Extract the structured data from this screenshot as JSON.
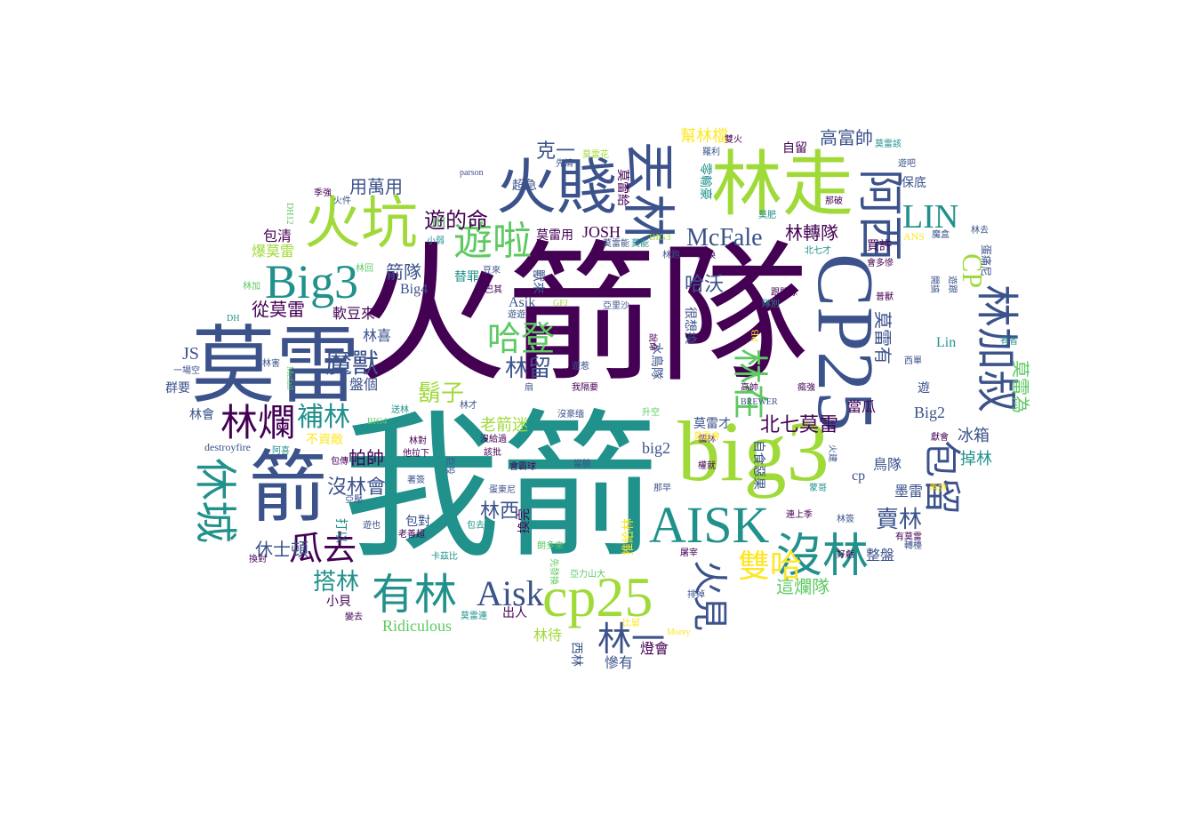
{
  "palette": {
    "purple": "#440154",
    "indigo": "#3b528b",
    "teal": "#21918c",
    "green": "#5ec962",
    "lime": "#a0da39",
    "yellow": "#fde725"
  },
  "words": [
    {
      "id": "w0",
      "text": "火箭隊",
      "color": "#440154"
    },
    {
      "id": "w1",
      "text": "我箭",
      "color": "#21918c"
    },
    {
      "id": "w2",
      "text": "big3",
      "color": "#a0da39"
    },
    {
      "id": "w3",
      "text": "CP25",
      "color": "#3b528b"
    },
    {
      "id": "w4",
      "text": "莫雷",
      "color": "#3b528b"
    },
    {
      "id": "w5",
      "text": "林走",
      "color": "#a0da39"
    },
    {
      "id": "w6",
      "text": "火賤",
      "color": "#3b528b"
    },
    {
      "id": "w7",
      "text": "火坑",
      "color": "#a0da39"
    },
    {
      "id": "w8",
      "text": "箭",
      "color": "#3b528b"
    },
    {
      "id": "w9",
      "text": "cp25",
      "color": "#a0da39"
    },
    {
      "id": "w10",
      "text": "AISK",
      "color": "#21918c"
    },
    {
      "id": "w11",
      "text": "Big3",
      "color": "#21918c"
    },
    {
      "id": "w12",
      "text": "丟林",
      "color": "#3b528b"
    },
    {
      "id": "w13",
      "text": "阿西",
      "color": "#3b528b"
    },
    {
      "id": "w14",
      "text": "林加叔",
      "color": "#3b528b"
    },
    {
      "id": "w15",
      "text": "遊啦",
      "color": "#5ec962"
    },
    {
      "id": "w16",
      "text": "有林",
      "color": "#21918c"
    },
    {
      "id": "w17",
      "text": "林爛",
      "color": "#440154"
    },
    {
      "id": "w18",
      "text": "沒林",
      "color": "#21918c"
    },
    {
      "id": "w19",
      "text": "休城",
      "color": "#21918c"
    },
    {
      "id": "w20",
      "text": "包留",
      "color": "#3b528b"
    },
    {
      "id": "w21",
      "text": "LIN",
      "color": "#21918c"
    },
    {
      "id": "w22",
      "text": "Aisk",
      "color": "#3b528b"
    },
    {
      "id": "w23",
      "text": "McFale",
      "color": "#3b528b"
    },
    {
      "id": "w24",
      "text": "雙哈",
      "color": "#fde725"
    },
    {
      "id": "w25",
      "text": "哈登",
      "color": "#5ec962"
    },
    {
      "id": "w26",
      "text": "林在",
      "color": "#5ec962"
    },
    {
      "id": "w27",
      "text": "瓜去",
      "color": "#440154"
    },
    {
      "id": "w28",
      "text": "火見",
      "color": "#3b528b"
    },
    {
      "id": "w29",
      "text": "遊的命",
      "color": "#440154"
    },
    {
      "id": "w30",
      "text": "魔獸",
      "color": "#3b528b"
    },
    {
      "id": "w31",
      "text": "補林",
      "color": "#21918c"
    },
    {
      "id": "w32",
      "text": "鬍子",
      "color": "#a0da39"
    },
    {
      "id": "w33",
      "text": "林留",
      "color": "#3b528b"
    },
    {
      "id": "w34",
      "text": "林一",
      "color": "#3b528b"
    },
    {
      "id": "w35",
      "text": "搭林",
      "color": "#21918c"
    },
    {
      "id": "w36",
      "text": "CP",
      "color": "#a0da39"
    },
    {
      "id": "w37",
      "text": "北七莫雷",
      "color": "#440154"
    },
    {
      "id": "w38",
      "text": "賣林",
      "color": "#3b528b"
    },
    {
      "id": "w39",
      "text": "林轉隊",
      "color": "#440154"
    },
    {
      "id": "w40",
      "text": "莫雷有",
      "color": "#3b528b"
    },
    {
      "id": "w41",
      "text": "莫雷為",
      "color": "#5ec962"
    },
    {
      "id": "w42",
      "text": "JOSH",
      "color": "#440154"
    },
    {
      "id": "w43",
      "text": "沒林會",
      "color": "#3b528b"
    },
    {
      "id": "w44",
      "text": "林西",
      "color": "#3b528b"
    },
    {
      "id": "w45",
      "text": "從莫雷",
      "color": "#440154"
    },
    {
      "id": "w46",
      "text": "用萬用",
      "color": "#3b528b"
    },
    {
      "id": "w47",
      "text": "高富帥",
      "color": "#3b528b"
    },
    {
      "id": "w48",
      "text": "這爛隊",
      "color": "#5ec962"
    },
    {
      "id": "w49",
      "text": "Ridiculous",
      "color": "#5ec962"
    },
    {
      "id": "w50",
      "text": "哈沃",
      "color": "#3b528b"
    },
    {
      "id": "w51",
      "text": "帕帥",
      "color": "#440154"
    },
    {
      "id": "w52",
      "text": "休士頓",
      "color": "#3b528b"
    },
    {
      "id": "w53",
      "text": "老箭迷",
      "color": "#a0da39"
    },
    {
      "id": "w54",
      "text": "冰箱",
      "color": "#3b528b"
    },
    {
      "id": "w55",
      "text": "掉林",
      "color": "#21918c"
    },
    {
      "id": "w56",
      "text": "克一",
      "color": "#3b528b"
    },
    {
      "id": "w57",
      "text": "幫林檔",
      "color": "#fde725"
    },
    {
      "id": "w58",
      "text": "箭隊",
      "color": "#3b528b"
    },
    {
      "id": "w59",
      "text": "Big4",
      "color": "#3b528b"
    },
    {
      "id": "w60",
      "text": "Big2",
      "color": "#3b528b"
    },
    {
      "id": "w61",
      "text": "big2",
      "color": "#3b528b"
    },
    {
      "id": "w62",
      "text": "JS",
      "color": "#3b528b"
    },
    {
      "id": "w63",
      "text": "JH",
      "color": "#5ec962"
    },
    {
      "id": "w64",
      "text": "cp",
      "color": "#3b528b"
    },
    {
      "id": "w65",
      "text": "Lin",
      "color": "#21918c"
    },
    {
      "id": "w66",
      "text": "Asik",
      "color": "#3b528b"
    },
    {
      "id": "w67",
      "text": "包清",
      "color": "#440154"
    },
    {
      "id": "w68",
      "text": "爆莫雷",
      "color": "#a0da39"
    },
    {
      "id": "w69",
      "text": "軟豆來",
      "color": "#440154"
    },
    {
      "id": "w70",
      "text": "林喜",
      "color": "#3b528b"
    },
    {
      "id": "w71",
      "text": "盤個",
      "color": "#3b528b"
    },
    {
      "id": "w72",
      "text": "群要",
      "color": "#3b528b"
    },
    {
      "id": "w73",
      "text": "林會",
      "color": "#3b528b"
    },
    {
      "id": "w74",
      "text": "不資敵",
      "color": "#fde725"
    },
    {
      "id": "w75",
      "text": "destroyfire",
      "color": "#3b528b"
    },
    {
      "id": "w76",
      "text": "當瓜",
      "color": "#440154"
    },
    {
      "id": "w77",
      "text": "鳥隊",
      "color": "#3b528b"
    },
    {
      "id": "w78",
      "text": "墨雷",
      "color": "#3b528b"
    },
    {
      "id": "w79",
      "text": "整盤",
      "color": "#3b528b"
    },
    {
      "id": "w80",
      "text": "燈會",
      "color": "#440154"
    },
    {
      "id": "w81",
      "text": "慘有",
      "color": "#3b528b"
    },
    {
      "id": "w82",
      "text": "林待",
      "color": "#a0da39"
    },
    {
      "id": "w83",
      "text": "出人",
      "color": "#440154"
    },
    {
      "id": "w84",
      "text": "小貝",
      "color": "#440154"
    },
    {
      "id": "w85",
      "text": "包對",
      "color": "#3b528b"
    },
    {
      "id": "w86",
      "text": "換完",
      "color": "#440154"
    },
    {
      "id": "w87",
      "text": "推給林",
      "color": "#fde725"
    },
    {
      "id": "w88",
      "text": "獸來",
      "color": "#3b528b"
    },
    {
      "id": "w89",
      "text": "替罪",
      "color": "#21918c"
    },
    {
      "id": "w90",
      "text": "保底",
      "color": "#3b528b"
    },
    {
      "id": "w91",
      "text": "買許",
      "color": "#440154"
    },
    {
      "id": "w92",
      "text": "自留",
      "color": "#440154"
    },
    {
      "id": "w93",
      "text": "超急",
      "color": "#3b528b"
    },
    {
      "id": "w94",
      "text": "莫雷用",
      "color": "#440154"
    },
    {
      "id": "w95",
      "text": "莫雷給",
      "color": "#440154"
    },
    {
      "id": "w96",
      "text": "零輸豪",
      "color": "#21918c"
    },
    {
      "id": "w97",
      "text": "很想換",
      "color": "#3b528b"
    },
    {
      "id": "w98",
      "text": "水鳥隊",
      "color": "#3b528b"
    },
    {
      "id": "w99",
      "text": "莫雷才",
      "color": "#3b528b"
    },
    {
      "id": "w100",
      "text": "自食惡果",
      "color": "#3b528b"
    },
    {
      "id": "w101",
      "text": "打以",
      "color": "#21918c"
    },
    {
      "id": "w102",
      "text": "ANS",
      "color": "#fde725"
    },
    {
      "id": "w103",
      "text": "遊",
      "color": "#3b528b"
    },
    {
      "id": "w104",
      "text": "BIG3",
      "color": "#a0da39"
    },
    {
      "id": "w105",
      "text": "parson",
      "color": "#3b528b"
    },
    {
      "id": "w106",
      "text": "先清",
      "color": "#3b528b"
    },
    {
      "id": "w107",
      "text": "莫雷花",
      "color": "#a0da39"
    },
    {
      "id": "w108",
      "text": "雙火",
      "color": "#440154"
    },
    {
      "id": "w109",
      "text": "莫雷該",
      "color": "#21918c"
    },
    {
      "id": "w110",
      "text": "羅利",
      "color": "#3b528b"
    },
    {
      "id": "w111",
      "text": "遊吧",
      "color": "#3b528b"
    },
    {
      "id": "w112",
      "text": "季強",
      "color": "#440154"
    },
    {
      "id": "w113",
      "text": "火件",
      "color": "#3b528b"
    },
    {
      "id": "w114",
      "text": "DH12",
      "color": "#5ec962"
    },
    {
      "id": "w115",
      "text": "小弱",
      "color": "#21918c"
    },
    {
      "id": "w116",
      "text": "莫能",
      "color": "#21918c"
    },
    {
      "id": "w117",
      "text": "那破",
      "color": "#440154"
    },
    {
      "id": "w118",
      "text": "莫雷能",
      "color": "#3b528b"
    },
    {
      "id": "w119",
      "text": "莫肥",
      "color": "#21918c"
    },
    {
      "id": "w120",
      "text": "林去",
      "color": "#3b528b"
    },
    {
      "id": "w121",
      "text": "會多慘",
      "color": "#440154"
    },
    {
      "id": "w122",
      "text": "蛋痛尼",
      "color": "#3b528b"
    },
    {
      "id": "w123",
      "text": "魔盒",
      "color": "#3b528b"
    },
    {
      "id": "w124",
      "text": "北七才",
      "color": "#21918c"
    },
    {
      "id": "w125",
      "text": "連換",
      "color": "#440154"
    },
    {
      "id": "w126",
      "text": "林跑",
      "color": "#3b528b"
    },
    {
      "id": "w127",
      "text": "豆來",
      "color": "#3b528b"
    },
    {
      "id": "w128",
      "text": "巴其",
      "color": "#440154"
    },
    {
      "id": "w129",
      "text": "林回",
      "color": "#5ec962"
    },
    {
      "id": "w130",
      "text": "林加",
      "color": "#5ec962"
    },
    {
      "id": "w131",
      "text": "DH",
      "color": "#21918c"
    },
    {
      "id": "w132",
      "text": "遊遊",
      "color": "#3b528b"
    },
    {
      "id": "w133",
      "text": "GFJ",
      "color": "#a0da39"
    },
    {
      "id": "w134",
      "text": "亞里沙",
      "color": "#3b528b"
    },
    {
      "id": "w135",
      "text": "說命",
      "color": "#440154"
    },
    {
      "id": "w136",
      "text": "跟敗球",
      "color": "#440154"
    },
    {
      "id": "w137",
      "text": "隊別",
      "color": "#21918c"
    },
    {
      "id": "w138",
      "text": "普獸",
      "color": "#440154"
    },
    {
      "id": "w139",
      "text": "遊跟",
      "color": "#3b528b"
    },
    {
      "id": "w140",
      "text": "開搞",
      "color": "#3b528b"
    },
    {
      "id": "w141",
      "text": "有省",
      "color": "#21918c"
    },
    {
      "id": "w142",
      "text": "西單",
      "color": "#3b528b"
    },
    {
      "id": "w143",
      "text": "一場空",
      "color": "#3b528b"
    },
    {
      "id": "w144",
      "text": "林害",
      "color": "#3b528b"
    },
    {
      "id": "w145",
      "text": "Mcfail",
      "color": "#5ec962"
    },
    {
      "id": "w146",
      "text": "遊惹",
      "color": "#3b528b"
    },
    {
      "id": "w147",
      "text": "我隔要",
      "color": "#440154"
    },
    {
      "id": "w148",
      "text": "扇",
      "color": "#3b528b"
    },
    {
      "id": "w149",
      "text": "PB",
      "color": "#fde725"
    },
    {
      "id": "w150",
      "text": "高帥",
      "color": "#440154"
    },
    {
      "id": "w151",
      "text": "瘋強",
      "color": "#440154"
    },
    {
      "id": "w152",
      "text": "BREWER",
      "color": "#3b528b"
    },
    {
      "id": "w153",
      "text": "送林",
      "color": "#21918c"
    },
    {
      "id": "w154",
      "text": "林才",
      "color": "#3b528b"
    },
    {
      "id": "w155",
      "text": "沒豪缅",
      "color": "#3b528b"
    },
    {
      "id": "w156",
      "text": "升空",
      "color": "#5ec962"
    },
    {
      "id": "w157",
      "text": "BIG4",
      "color": "#5ec962"
    },
    {
      "id": "w158",
      "text": "個林",
      "color": "#440154"
    },
    {
      "id": "w159",
      "text": "獻會",
      "color": "#440154"
    },
    {
      "id": "w160",
      "text": "林對",
      "color": "#440154"
    },
    {
      "id": "w161",
      "text": "沒給過",
      "color": "#440154"
    },
    {
      "id": "w162",
      "text": "他拉下",
      "color": "#440154"
    },
    {
      "id": "w163",
      "text": "巨投",
      "color": "#3b528b"
    },
    {
      "id": "w164",
      "text": "該批",
      "color": "#440154"
    },
    {
      "id": "w165",
      "text": "莫雷會",
      "color": "#fde725"
    },
    {
      "id": "w166",
      "text": "阿喜",
      "color": "#21918c"
    },
    {
      "id": "w167",
      "text": "包傳",
      "color": "#440154"
    },
    {
      "id": "w168",
      "text": "火建",
      "color": "#3b528b"
    },
    {
      "id": "w169",
      "text": "會霸球",
      "color": "#440154"
    },
    {
      "id": "w170",
      "text": "當臉",
      "color": "#3b528b"
    },
    {
      "id": "w171",
      "text": "權就",
      "color": "#440154"
    },
    {
      "id": "w172",
      "text": "蛋東尼",
      "color": "#3b528b"
    },
    {
      "id": "w173",
      "text": "著簽",
      "color": "#3b528b"
    },
    {
      "id": "w174",
      "text": "亞壓",
      "color": "#3b528b"
    },
    {
      "id": "w175",
      "text": "那早",
      "color": "#3b528b"
    },
    {
      "id": "w176",
      "text": "蒙哥",
      "color": "#21918c"
    },
    {
      "id": "w177",
      "text": "再詩",
      "color": "#fde725"
    },
    {
      "id": "w178",
      "text": "遊也",
      "color": "#3b528b"
    },
    {
      "id": "w179",
      "text": "老善超",
      "color": "#440154"
    },
    {
      "id": "w180",
      "text": "包去",
      "color": "#21918c"
    },
    {
      "id": "w181",
      "text": "連上季",
      "color": "#440154"
    },
    {
      "id": "w182",
      "text": "林簽",
      "color": "#3b528b"
    },
    {
      "id": "w183",
      "text": "有莫雷",
      "color": "#440154"
    },
    {
      "id": "w184",
      "text": "卡茲比",
      "color": "#21918c"
    },
    {
      "id": "w185",
      "text": "朗多來",
      "color": "#5ec962"
    },
    {
      "id": "w186",
      "text": "屠宰",
      "color": "#440154"
    },
    {
      "id": "w187",
      "text": "好虧",
      "color": "#440154"
    },
    {
      "id": "w188",
      "text": "轉檯",
      "color": "#3b528b"
    },
    {
      "id": "w189",
      "text": "換對",
      "color": "#440154"
    },
    {
      "id": "w190",
      "text": "先發換",
      "color": "#5ec962"
    },
    {
      "id": "w191",
      "text": "亞力山大",
      "color": "#5ec962"
    },
    {
      "id": "w192",
      "text": "排掉",
      "color": "#3b528b"
    },
    {
      "id": "w193",
      "text": "莫雷連",
      "color": "#21918c"
    },
    {
      "id": "w194",
      "text": "變去",
      "color": "#440154"
    },
    {
      "id": "w195",
      "text": "比留",
      "color": "#fde725"
    },
    {
      "id": "w196",
      "text": "Morey",
      "color": "#fde725"
    },
    {
      "id": "w197",
      "text": "西林",
      "color": "#3b528b"
    }
  ]
}
